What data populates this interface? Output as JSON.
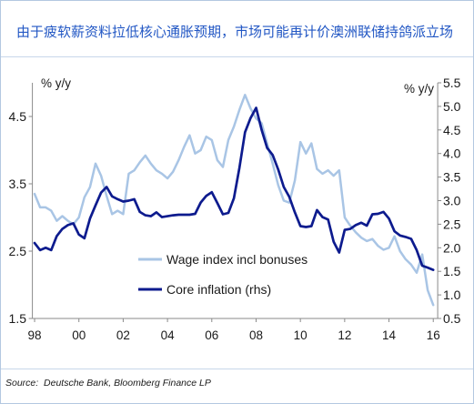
{
  "colors": {
    "title": "#2257c4",
    "frame": "#b3c8e1",
    "axis": "#8a8a8a",
    "text": "#1a1a1a"
  },
  "chart_data": {
    "type": "line",
    "title": "由于疲软薪资料拉低核心通胀预期，市场可能再计价澳洲联储持鸽派立场",
    "source": "Source:  Deutsche Bank, Bloomberg Finance LP",
    "xlabel": "",
    "xlim": [
      1997.9,
      2016.2
    ],
    "x_ticks": [
      1998,
      2000,
      2002,
      2004,
      2006,
      2008,
      2010,
      2012,
      2014,
      2016
    ],
    "x_tick_labels": [
      "98",
      "00",
      "02",
      "04",
      "06",
      "08",
      "10",
      "12",
      "14",
      "16"
    ],
    "y_left": {
      "label": "% y/y",
      "lim": [
        1.5,
        5.0
      ],
      "ticks": [
        4.5,
        3.5,
        2.5,
        1.5
      ],
      "tick_labels": [
        "4.5",
        "3.5",
        "2.5",
        "1.5"
      ]
    },
    "y_right": {
      "label": "% y/y",
      "lim": [
        0.5,
        5.5
      ],
      "ticks": [
        5.5,
        5.0,
        4.5,
        4.0,
        3.5,
        3.0,
        2.5,
        2.0,
        1.5,
        1.0,
        0.5
      ],
      "tick_labels": [
        "5.5",
        "5.0",
        "4.5",
        "4.0",
        "3.5",
        "3.0",
        "2.5",
        "2.0",
        "1.5",
        "1.0",
        "0.5"
      ]
    },
    "grid": false,
    "legend": {
      "placement": "bottom-center"
    },
    "x": [
      1998,
      1998.25,
      1998.5,
      1998.75,
      1999,
      1999.25,
      1999.5,
      1999.75,
      2000,
      2000.25,
      2000.5,
      2000.75,
      2001,
      2001.25,
      2001.5,
      2001.75,
      2002,
      2002.25,
      2002.5,
      2002.75,
      2003,
      2003.25,
      2003.5,
      2003.75,
      2004,
      2004.25,
      2004.5,
      2004.75,
      2005,
      2005.25,
      2005.5,
      2005.75,
      2006,
      2006.25,
      2006.5,
      2006.75,
      2007,
      2007.25,
      2007.5,
      2007.75,
      2008,
      2008.25,
      2008.5,
      2008.75,
      2009,
      2009.25,
      2009.5,
      2009.75,
      2010,
      2010.25,
      2010.5,
      2010.75,
      2011,
      2011.25,
      2011.5,
      2011.75,
      2012,
      2012.25,
      2012.5,
      2012.75,
      2013,
      2013.25,
      2013.5,
      2013.75,
      2014,
      2014.25,
      2014.5,
      2014.75,
      2015,
      2015.25,
      2015.5,
      2015.75,
      2016
    ],
    "series": [
      {
        "name": "Wage index incl bonuses",
        "axis": "left",
        "color": "#a9c5e5",
        "values": [
          3.35,
          3.15,
          3.15,
          3.1,
          2.95,
          3.02,
          2.95,
          2.9,
          3.0,
          3.3,
          3.45,
          3.8,
          3.62,
          3.32,
          3.05,
          3.1,
          3.05,
          3.65,
          3.7,
          3.82,
          3.92,
          3.8,
          3.7,
          3.65,
          3.58,
          3.68,
          3.85,
          4.05,
          4.22,
          3.95,
          4.0,
          4.2,
          4.15,
          3.85,
          3.75,
          4.15,
          4.35,
          4.6,
          4.82,
          4.62,
          4.47,
          4.4,
          4.1,
          3.8,
          3.48,
          3.25,
          3.22,
          3.55,
          4.12,
          3.95,
          4.1,
          3.72,
          3.65,
          3.7,
          3.62,
          3.7,
          3.0,
          2.88,
          2.78,
          2.7,
          2.65,
          2.68,
          2.58,
          2.52,
          2.55,
          2.72,
          2.5,
          2.38,
          2.3,
          2.18,
          2.45,
          1.92,
          1.7
        ]
      },
      {
        "name": "Core inflation (rhs)",
        "axis": "right",
        "color": "#0d1b8e",
        "values": [
          2.1,
          1.95,
          2.0,
          1.95,
          2.25,
          2.4,
          2.48,
          2.52,
          2.28,
          2.2,
          2.62,
          2.9,
          3.17,
          3.29,
          3.09,
          3.03,
          2.98,
          3.0,
          3.03,
          2.76,
          2.69,
          2.67,
          2.75,
          2.65,
          2.67,
          2.69,
          2.7,
          2.7,
          2.7,
          2.72,
          2.96,
          3.1,
          3.18,
          2.95,
          2.71,
          2.74,
          3.05,
          3.7,
          4.45,
          4.75,
          4.97,
          4.5,
          4.12,
          3.97,
          3.66,
          3.29,
          3.08,
          2.75,
          2.46,
          2.44,
          2.46,
          2.8,
          2.65,
          2.6,
          2.13,
          1.9,
          2.38,
          2.4,
          2.48,
          2.53,
          2.47,
          2.71,
          2.72,
          2.76,
          2.62,
          2.35,
          2.26,
          2.23,
          2.19,
          1.95,
          1.62,
          1.58,
          1.53
        ]
      }
    ]
  }
}
